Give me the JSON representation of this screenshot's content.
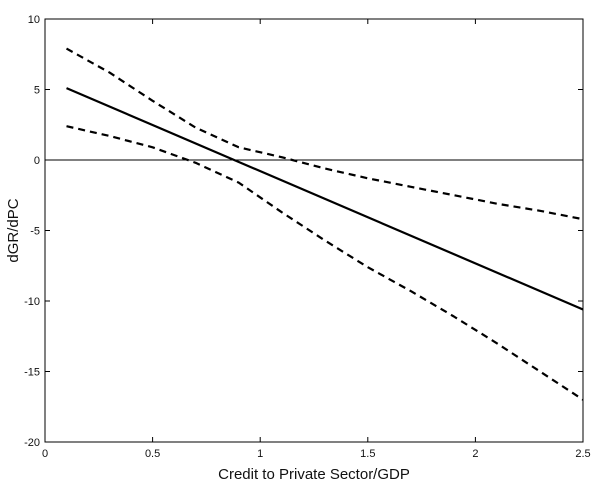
{
  "chart_data": {
    "type": "line",
    "title": "",
    "xlabel": "Credit to Private Sector/GDP",
    "ylabel": "dGR/dPC",
    "xlim": [
      0,
      2.5
    ],
    "ylim": [
      -20,
      10
    ],
    "xticks": [
      0,
      0.5,
      1,
      1.5,
      2,
      2.5
    ],
    "xtick_labels": [
      "0",
      "0.5",
      "1",
      "1.5",
      "2",
      "2.5"
    ],
    "yticks": [
      -20,
      -15,
      -10,
      -5,
      0,
      5,
      10
    ],
    "ytick_labels": [
      "-20",
      "-15",
      "-10",
      "-5",
      "0",
      "5",
      "10"
    ],
    "grid": false,
    "reference_line_y": 0,
    "series": [
      {
        "style": "solid",
        "color": "#000000",
        "x": [
          0.1,
          2.5
        ],
        "y": [
          5.1,
          -10.6
        ]
      },
      {
        "style": "dashed",
        "color": "#000000",
        "x": [
          0.1,
          0.3,
          0.5,
          0.7,
          0.9,
          1.1,
          1.3,
          1.5,
          1.7,
          1.9,
          2.1,
          2.3,
          2.5
        ],
        "y": [
          7.9,
          6.2,
          4.2,
          2.3,
          0.9,
          0.2,
          -0.6,
          -1.3,
          -1.9,
          -2.5,
          -3.1,
          -3.6,
          -4.2
        ]
      },
      {
        "style": "dashed",
        "color": "#000000",
        "x": [
          0.1,
          0.3,
          0.5,
          0.7,
          0.9,
          1.1,
          1.3,
          1.5,
          1.7,
          1.9,
          2.1,
          2.3,
          2.5
        ],
        "y": [
          2.4,
          1.7,
          0.9,
          -0.2,
          -1.6,
          -3.7,
          -5.7,
          -7.6,
          -9.3,
          -11.1,
          -13.0,
          -15.0,
          -17.0
        ]
      }
    ]
  }
}
